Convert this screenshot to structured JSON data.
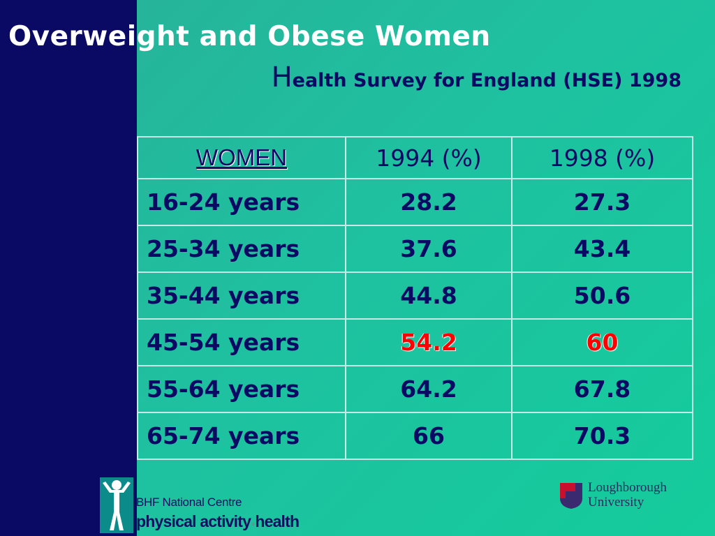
{
  "slide": {
    "title": "Overweight and Obese Women",
    "subtitle_initial": "H",
    "subtitle_rest": "ealth Survey for England (HSE) 1998"
  },
  "table": {
    "headers": [
      "WOMEN",
      "1994 (%)",
      "1998 (%)"
    ],
    "rows": [
      {
        "age": "16-24 years",
        "y1994": "28.2",
        "y1998": "27.3"
      },
      {
        "age": "25-34 years",
        "y1994": "37.6",
        "y1998": "43.4"
      },
      {
        "age": "35-44 years",
        "y1994": "44.8",
        "y1998": "50.6"
      },
      {
        "age": "45-54 years",
        "y1994": "54.2",
        "y1998": "60"
      },
      {
        "age": "55-64 years",
        "y1994": "64.2",
        "y1998": "67.8"
      },
      {
        "age": "65-74 years",
        "y1994": "66",
        "y1998": "70.3"
      }
    ],
    "highlight_color": "#ff0000"
  },
  "logos": {
    "bhf_line1": "BHF National Centre",
    "bhf_line2_a": "physical activity",
    "bhf_line2_amp": "+",
    "bhf_line2_b": "health",
    "lboro_line1": "Loughborough",
    "lboro_line2": "University"
  },
  "colors": {
    "navy": "#0a0a64",
    "teal_background": "#1fc0a0",
    "lboro_purple": "#3b2a70",
    "lboro_red": "#c8102e"
  }
}
